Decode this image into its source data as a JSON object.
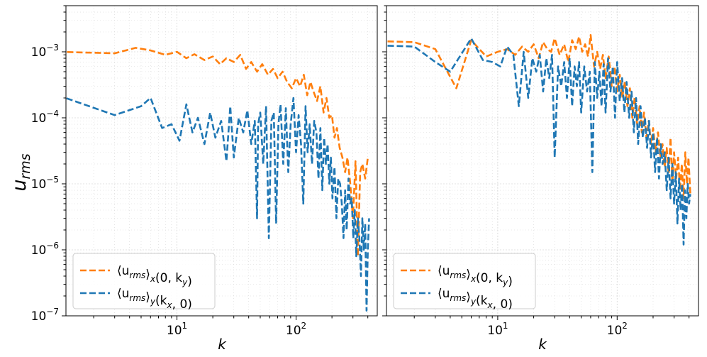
{
  "figure": {
    "ylabel_main": "u",
    "ylabel_sub": "rms"
  },
  "chart_data": [
    {
      "type": "line",
      "panel": "left",
      "xlabel": "k",
      "ylabel": "u_rms",
      "xscale": "log",
      "yscale": "log",
      "xlim": [
        1.17,
        480
      ],
      "ylim": [
        1e-07,
        0.005
      ],
      "grid": true,
      "legend_position": "lower-left",
      "x_ticks": [
        {
          "value": 10,
          "base": "10",
          "exp": "1"
        },
        {
          "value": 100,
          "base": "10",
          "exp": "2"
        }
      ],
      "y_ticks": [
        {
          "value": 1e-07,
          "base": "10",
          "exp": "−7"
        },
        {
          "value": 1e-06,
          "base": "10",
          "exp": "−6"
        },
        {
          "value": 1e-05,
          "base": "10",
          "exp": "−5"
        },
        {
          "value": 0.0001,
          "base": "10",
          "exp": "−4"
        },
        {
          "value": 0.001,
          "base": "10",
          "exp": "−3"
        }
      ],
      "series": [
        {
          "name": "⟨u_rms⟩_x(0, k_y)",
          "legend_parts": {
            "pre": "⟨u",
            "sub1": "rms",
            "mid": "⟩",
            "sub2": "x",
            "post": "(0, k",
            "sub3": "y",
            "end": ")"
          },
          "color": "#ff7f0e",
          "style": "dashed",
          "x": [
            1,
            3,
            4.5,
            6,
            8,
            10,
            12,
            14,
            17,
            20,
            23,
            26,
            30,
            34,
            38,
            42,
            47,
            52,
            58,
            64,
            70,
            77,
            84,
            92,
            100,
            108,
            116,
            124,
            132,
            140,
            150,
            160,
            170,
            180,
            190,
            200,
            210,
            220,
            232,
            245,
            258,
            270,
            285,
            300,
            315,
            330,
            345,
            360,
            380,
            400
          ],
          "y": [
            0.001,
            0.00095,
            0.00115,
            0.00105,
            0.0009,
            0.001,
            0.0008,
            0.00092,
            0.00075,
            0.00085,
            0.00065,
            0.0008,
            0.0007,
            0.0009,
            0.00055,
            0.0007,
            0.0005,
            0.00065,
            0.00045,
            0.00055,
            0.0004,
            0.0005,
            0.00035,
            0.00028,
            0.0004,
            0.0003,
            0.00045,
            0.00022,
            0.00035,
            0.00025,
            0.00018,
            0.0003,
            0.00012,
            0.0002,
            0.0001,
            0.00011,
            5e-05,
            7e-05,
            3.5e-05,
            2.5e-05,
            1.5e-05,
            2.5e-05,
            1e-05,
            3e-06,
            2.2e-05,
            8e-07,
            1.5e-05,
            2e-05,
            1.2e-05,
            2.5e-05
          ]
        },
        {
          "name": "⟨u_rms⟩_y(k_x, 0)",
          "legend_parts": {
            "pre": "⟨u",
            "sub1": "rms",
            "mid": "⟩",
            "sub2": "y",
            "post": "(k",
            "sub3": "x",
            "end": ", 0)"
          },
          "color": "#1f77b4",
          "style": "dashed",
          "x": [
            1,
            3,
            5,
            6,
            7.5,
            9,
            10.5,
            12,
            13.5,
            15,
            17,
            19,
            21,
            23.5,
            26,
            28,
            30,
            33,
            36,
            39,
            42,
            45,
            47,
            48,
            50,
            53,
            56,
            59,
            62,
            65,
            68,
            71,
            74,
            78,
            82,
            86,
            90,
            95,
            100,
            105,
            110,
            115,
            120,
            125,
            130,
            136,
            142,
            148,
            154,
            160,
            166,
            172,
            178,
            184,
            190,
            196,
            202,
            210,
            218,
            226,
            234,
            242,
            250,
            258,
            266,
            275,
            284,
            293,
            302,
            311,
            320,
            330,
            340,
            350,
            360,
            370,
            380,
            390,
            400,
            410
          ],
          "y": [
            0.00022,
            0.00011,
            0.00015,
            0.0002,
            7e-05,
            8e-05,
            4.5e-05,
            0.00016,
            6e-05,
            0.0001,
            4e-05,
            0.00012,
            5e-05,
            9e-05,
            2.2e-05,
            0.00015,
            2.5e-05,
            0.0001,
            6e-05,
            0.00013,
            4e-05,
            9e-05,
            3e-06,
            8e-05,
            0.00012,
            2e-05,
            0.00015,
            1.5e-06,
            9e-05,
            0.00012,
            2.5e-06,
            8e-05,
            0.00016,
            2e-05,
            0.00014,
            1.5e-05,
            8e-05,
            0.0002,
            3e-05,
            0.00011,
            4e-05,
            5e-06,
            0.00015,
            3e-05,
            8e-05,
            2e-05,
            9e-05,
            6e-05,
            1.2e-05,
            7e-05,
            8e-06,
            5e-05,
            2e-05,
            4e-05,
            1e-05,
            2.5e-05,
            6e-06,
            1.8e-05,
            3e-06,
            1.2e-05,
            1e-05,
            5e-06,
            1.5e-06,
            8e-06,
            2e-06,
            1.2e-05,
            5e-06,
            6e-06,
            1.5e-06,
            4e-06,
            8e-07,
            3e-06,
            1.5e-06,
            4e-07,
            3e-06,
            1e-06,
            2.5e-06,
            1.2e-07,
            1e-06,
            3e-06
          ]
        }
      ]
    },
    {
      "type": "line",
      "panel": "right",
      "xlabel": "k",
      "ylabel": "",
      "xscale": "log",
      "yscale": "log",
      "xlim": [
        1.17,
        480
      ],
      "ylim": [
        1e-07,
        0.005
      ],
      "grid": true,
      "legend_position": "lower-left",
      "x_ticks": [
        {
          "value": 10,
          "base": "10",
          "exp": "1"
        },
        {
          "value": 100,
          "base": "10",
          "exp": "2"
        }
      ],
      "series": [
        {
          "name": "⟨u_rms⟩_x(0, k_y)",
          "legend_parts": {
            "pre": "⟨u",
            "sub1": "rms",
            "mid": "⟩",
            "sub2": "x",
            "post": "(0, k",
            "sub3": "y",
            "end": ")"
          },
          "color": "#ff7f0e",
          "style": "dashed",
          "x": [
            1,
            2,
            3,
            4.5,
            6,
            8,
            10,
            12,
            14,
            16,
            18,
            20,
            22,
            24,
            26,
            28,
            30,
            33,
            36,
            39,
            42,
            45,
            48,
            51,
            54,
            57,
            60,
            64,
            68,
            72,
            76,
            80,
            85,
            90,
            95,
            100,
            105,
            110,
            116,
            122,
            128,
            134,
            140,
            147,
            154,
            161,
            168,
            176,
            184,
            192,
            200,
            210,
            220,
            230,
            240,
            250,
            260,
            270,
            280,
            290,
            300,
            312,
            324,
            336,
            348,
            360,
            372,
            384,
            396,
            410
          ],
          "y": [
            0.00145,
            0.0014,
            0.0011,
            0.00028,
            0.0015,
            0.00085,
            0.001,
            0.0011,
            0.0009,
            0.0012,
            0.001,
            0.0013,
            0.0008,
            0.0014,
            0.0011,
            0.001,
            0.0016,
            0.0009,
            0.0013,
            0.0007,
            0.0015,
            0.0011,
            0.0017,
            0.001,
            0.0013,
            0.00085,
            0.0018,
            0.0006,
            0.001,
            0.00055,
            0.0009,
            0.0004,
            0.00085,
            0.0003,
            0.0006,
            0.00025,
            0.00045,
            0.0002,
            0.00035,
            0.00015,
            0.00028,
            0.0001,
            0.0002,
            8e-05,
            0.00015,
            6e-05,
            0.00012,
            5e-05,
            9e-05,
            4e-05,
            7e-05,
            3e-05,
            6e-05,
            2.5e-05,
            4e-05,
            1.8e-05,
            3.5e-05,
            1.4e-05,
            5e-05,
            1e-05,
            3e-05,
            1.2e-05,
            2.5e-05,
            8e-06,
            2e-05,
            6e-06,
            3e-05,
            1e-05,
            2.5e-05,
            7e-06
          ]
        },
        {
          "name": "⟨u_rms⟩_y(k_x, 0)",
          "legend_parts": {
            "pre": "⟨u",
            "sub1": "rms",
            "mid": "⟩",
            "sub2": "y",
            "post": "(k",
            "sub3": "x",
            "end": ", 0)"
          },
          "color": "#1f77b4",
          "style": "dashed",
          "x": [
            1,
            2,
            3,
            4,
            6,
            7.5,
            9,
            10.5,
            12,
            13.5,
            15,
            16.5,
            18,
            19.5,
            21,
            22.5,
            24,
            25.5,
            27,
            28.5,
            30,
            32,
            34,
            36,
            38,
            40,
            42,
            44,
            46,
            48,
            50,
            53,
            56,
            59,
            62,
            65,
            68,
            71,
            74,
            77,
            80,
            84,
            88,
            92,
            96,
            100,
            105,
            110,
            115,
            120,
            126,
            132,
            138,
            144,
            150,
            157,
            164,
            171,
            178,
            185,
            192,
            200,
            208,
            216,
            224,
            232,
            240,
            250,
            260,
            270,
            280,
            290,
            300,
            310,
            320,
            330,
            340,
            350,
            360,
            370,
            380,
            390,
            400,
            410
          ],
          "y": [
            0.00125,
            0.0012,
            0.0007,
            0.0005,
            0.0016,
            0.00075,
            0.0007,
            0.0006,
            0.0012,
            0.0009,
            0.00015,
            0.001,
            0.0002,
            0.0008,
            0.0005,
            0.0009,
            0.00025,
            0.0008,
            0.0004,
            0.0009,
            2.5e-05,
            0.0006,
            0.0003,
            0.0007,
            0.0002,
            0.0008,
            0.00015,
            0.0006,
            0.0003,
            0.0007,
            0.00012,
            0.0006,
            0.00025,
            0.0005,
            1.5e-05,
            0.0007,
            0.0002,
            0.0005,
            0.00015,
            0.00065,
            0.00012,
            0.0008,
            0.00025,
            0.0006,
            0.0001,
            0.0007,
            0.00018,
            0.0004,
            0.00012,
            0.00035,
            0.0001,
            0.00025,
            6e-05,
            0.0002,
            4e-05,
            0.00015,
            5e-05,
            0.0001,
            3.5e-05,
            9e-05,
            2.5e-05,
            6e-05,
            1.5e-05,
            5e-05,
            1.2e-05,
            4e-05,
            2e-05,
            3e-05,
            8e-06,
            2.5e-05,
            6e-06,
            2e-05,
            5e-06,
            1.5e-05,
            2.5e-06,
            1.2e-05,
            4e-06,
            1e-05,
            1.2e-06,
            8e-06,
            3e-06,
            1e-05,
            5e-06,
            7e-06
          ]
        }
      ]
    }
  ]
}
